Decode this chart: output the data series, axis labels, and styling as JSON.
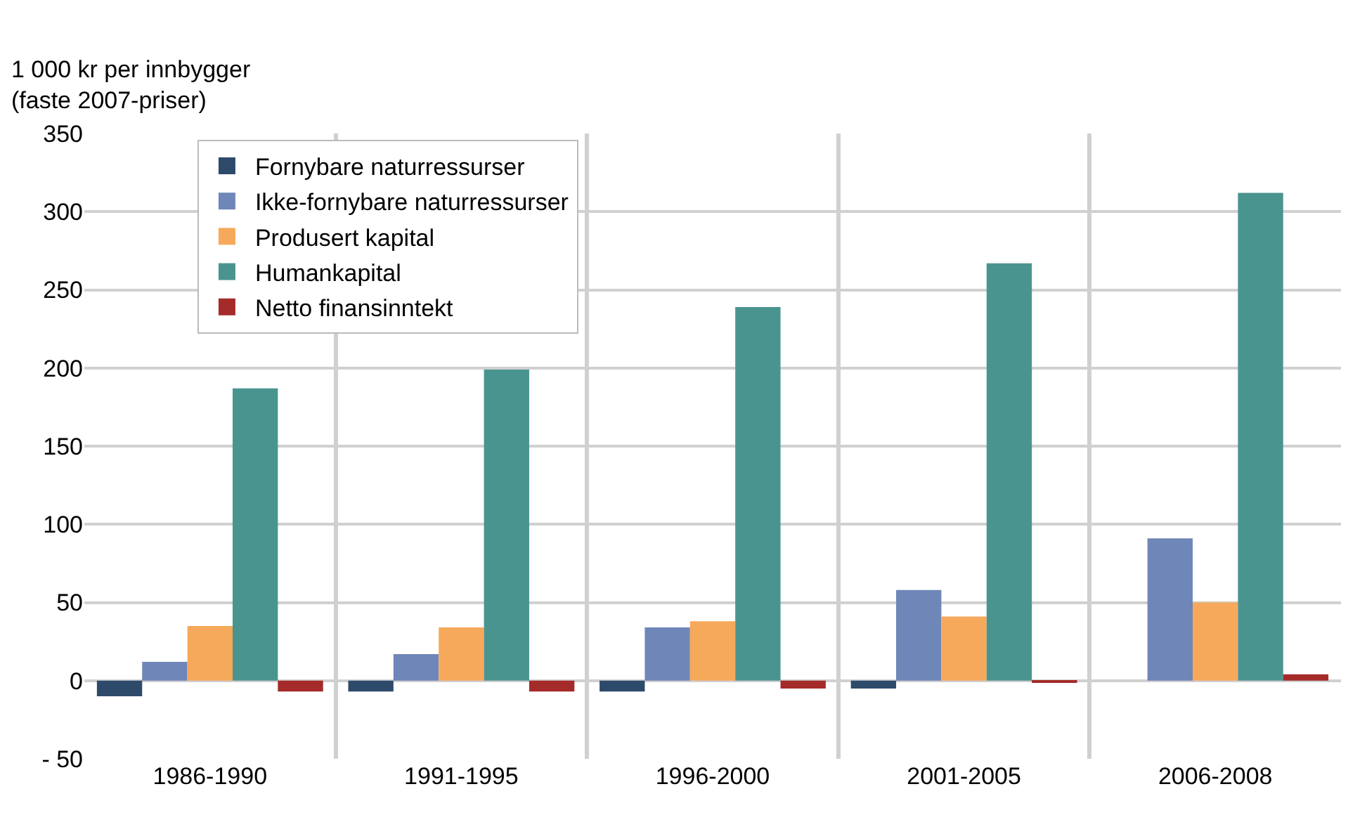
{
  "chart_data": {
    "type": "bar",
    "ylabel": "1 000 kr per innbygger\n(faste 2007-priser)",
    "categories": [
      "1986-1990",
      "1991-1995",
      "1996-2000",
      "2001-2005",
      "2006-2008"
    ],
    "series": [
      {
        "name": "Fornybare naturressurser",
        "color": "#2e4a6b",
        "values": [
          -10,
          -7,
          -7,
          -5,
          0
        ]
      },
      {
        "name": "Ikke-fornybare naturressurser",
        "color": "#6f86b8",
        "values": [
          12,
          17,
          34,
          58,
          91
        ]
      },
      {
        "name": "Produsert kapital",
        "color": "#f6a95a",
        "values": [
          35,
          34,
          38,
          41,
          50
        ]
      },
      {
        "name": "Humankapital",
        "color": "#4a9490",
        "values": [
          187,
          199,
          239,
          267,
          312
        ]
      },
      {
        "name": "Netto finansinntekt",
        "color": "#a52a2a",
        "values": [
          -7,
          -7,
          -5,
          -1,
          4
        ]
      }
    ],
    "ylim": [
      -50,
      350
    ],
    "yticks": [
      {
        "value": -50,
        "label": "- 50"
      },
      0,
      50,
      100,
      150,
      200,
      250,
      300,
      350
    ],
    "grid": true,
    "legend": "top left"
  }
}
